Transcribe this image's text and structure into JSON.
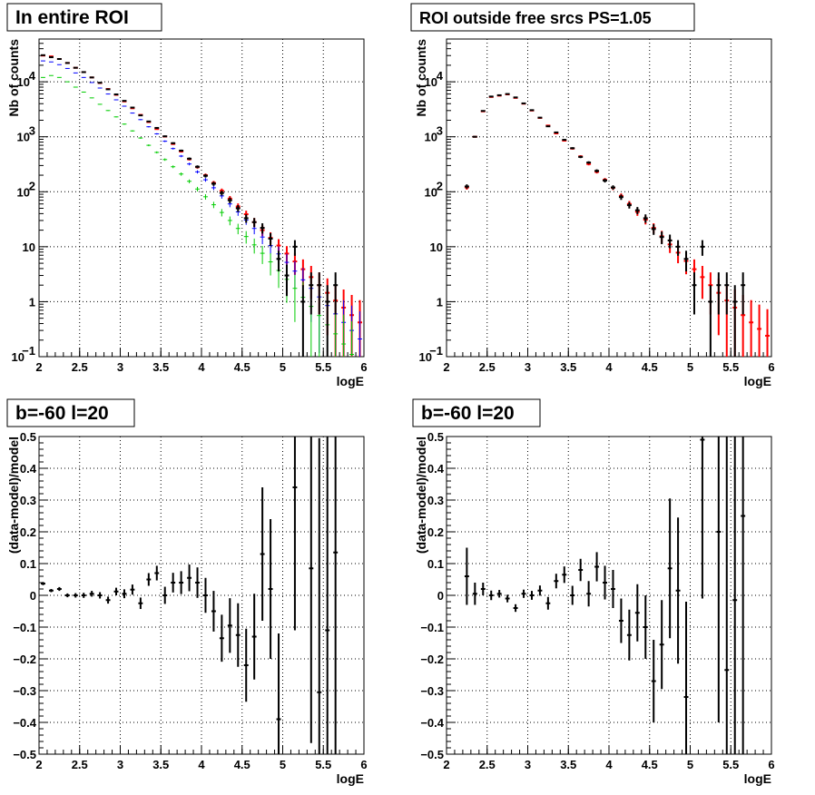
{
  "chart_data": [
    {
      "type": "scatter",
      "title": "In entire ROI",
      "xlabel": "logE",
      "ylabel": "Nb of counts",
      "xlim": [
        2,
        6
      ],
      "ylim": [
        0.1,
        60000
      ],
      "yscale": "log",
      "grid": true,
      "x_ticks": [
        "2",
        "2.5",
        "3",
        "3.5",
        "4",
        "4.5",
        "5",
        "5.5",
        "6"
      ],
      "y_ticks": [
        {
          "value": 0.1,
          "label": "10",
          "sup": "−1"
        },
        {
          "value": 1,
          "label": "1",
          "sup": ""
        },
        {
          "value": 10,
          "label": "10",
          "sup": ""
        },
        {
          "value": 100,
          "label": "10",
          "sup": "2"
        },
        {
          "value": 1000,
          "label": "10",
          "sup": "3"
        },
        {
          "value": 10000,
          "label": "10",
          "sup": "4"
        }
      ],
      "x_bin_half_width": 0.05,
      "series": [
        {
          "color": "#ff0000",
          "x": [
            2.05,
            2.15,
            2.25,
            2.35,
            2.45,
            2.55,
            2.65,
            2.75,
            2.85,
            2.95,
            3.05,
            3.15,
            3.25,
            3.35,
            3.45,
            3.55,
            3.65,
            3.75,
            3.85,
            3.95,
            4.05,
            4.15,
            4.25,
            4.35,
            4.45,
            4.55,
            4.65,
            4.75,
            4.85,
            4.95,
            5.05,
            5.15,
            5.25,
            5.35,
            5.45,
            5.55,
            5.65,
            5.75,
            5.85,
            5.95
          ],
          "y": [
            30000,
            29000,
            26000,
            22000,
            18000,
            15000,
            12000,
            9500,
            7400,
            5800,
            4400,
            3300,
            2500,
            1850,
            1380,
            1010,
            740,
            540,
            390,
            280,
            200,
            145,
            104,
            75,
            54,
            39,
            28,
            20,
            14.5,
            10.5,
            7.5,
            5.4,
            3.9,
            2.8,
            2.0,
            1.45,
            1.05,
            0.78,
            0.57,
            0.42
          ]
        },
        {
          "color": "#0000ff",
          "x": [
            2.05,
            2.15,
            2.25,
            2.35,
            2.45,
            2.55,
            2.65,
            2.75,
            2.85,
            2.95,
            3.05,
            3.15,
            3.25,
            3.35,
            3.45,
            3.55,
            3.65,
            3.75,
            3.85,
            3.95,
            4.05,
            4.15,
            4.25,
            4.35,
            4.45,
            4.55,
            4.65,
            4.75,
            4.85,
            4.95,
            5.05,
            5.15,
            5.25,
            5.35,
            5.45,
            5.55,
            5.65,
            5.75,
            5.85,
            5.95
          ],
          "y": [
            24000,
            23000,
            20500,
            17500,
            14500,
            12000,
            9700,
            7700,
            6000,
            4700,
            3600,
            2700,
            2050,
            1520,
            1130,
            830,
            610,
            445,
            320,
            230,
            165,
            118,
            84,
            60,
            43,
            30.5,
            21.5,
            15,
            10.5,
            7.4,
            5.2,
            3.6,
            2.5,
            1.75,
            1.22,
            0.85,
            0.6,
            0.42,
            0.3,
            0.21
          ]
        },
        {
          "color": "#00cc00",
          "x": [
            2.05,
            2.15,
            2.25,
            2.35,
            2.45,
            2.55,
            2.65,
            2.75,
            2.85,
            2.95,
            3.05,
            3.15,
            3.25,
            3.35,
            3.45,
            3.55,
            3.65,
            3.75,
            3.85,
            3.95,
            4.05,
            4.15,
            4.25,
            4.35,
            4.45,
            4.55,
            4.65,
            4.75,
            4.85,
            4.95,
            5.05,
            5.15,
            5.25,
            5.35,
            5.45,
            5.55,
            5.65,
            5.75,
            5.85,
            5.95
          ],
          "y": [
            12000,
            13000,
            12000,
            10000,
            8000,
            6500,
            5100,
            3900,
            3000,
            2300,
            1700,
            1280,
            950,
            700,
            520,
            385,
            285,
            210,
            155,
            112,
            81,
            58,
            42,
            30,
            21.5,
            15.3,
            10.8,
            7.6,
            5.3,
            3.7,
            2.55,
            1.75,
            1.2,
            0.82,
            0.56,
            0.38,
            0.26,
            0.17,
            0.11,
            0.075
          ]
        },
        {
          "color": "#000000",
          "x": [
            2.05,
            2.15,
            2.25,
            2.35,
            2.45,
            2.55,
            2.65,
            2.75,
            2.85,
            2.95,
            3.05,
            3.15,
            3.25,
            3.35,
            3.45,
            3.55,
            3.65,
            3.75,
            3.85,
            3.95,
            4.05,
            4.15,
            4.25,
            4.35,
            4.45,
            4.55,
            4.65,
            4.75,
            4.85,
            4.95,
            5.05,
            5.15,
            5.25,
            5.35,
            5.45,
            5.55,
            5.65
          ],
          "y": [
            30500,
            28000,
            26000,
            22000,
            18000,
            15000,
            12000,
            9600,
            7300,
            5900,
            4500,
            3400,
            2450,
            1900,
            1450,
            1020,
            765,
            560,
            400,
            285,
            195,
            140,
            95,
            70,
            50,
            33,
            28,
            22,
            14,
            6,
            3,
            10,
            1,
            2,
            2,
            1,
            2
          ]
        }
      ]
    },
    {
      "type": "scatter",
      "title": "ROI outside free srcs PS=1.05",
      "xlabel": "logE",
      "ylabel": "Nb of counts",
      "xlim": [
        2,
        6
      ],
      "ylim": [
        0.1,
        60000
      ],
      "yscale": "log",
      "grid": true,
      "x_ticks": [
        "2",
        "2.5",
        "3",
        "3.5",
        "4",
        "4.5",
        "5",
        "5.5",
        "6"
      ],
      "y_ticks": [
        {
          "value": 0.1,
          "label": "10",
          "sup": "−1"
        },
        {
          "value": 1,
          "label": "1",
          "sup": ""
        },
        {
          "value": 10,
          "label": "10",
          "sup": ""
        },
        {
          "value": 100,
          "label": "10",
          "sup": "2"
        },
        {
          "value": 1000,
          "label": "10",
          "sup": "3"
        },
        {
          "value": 10000,
          "label": "10",
          "sup": "4"
        }
      ],
      "x_bin_half_width": 0.05,
      "series": [
        {
          "color": "#ff0000",
          "x": [
            2.25,
            2.35,
            2.45,
            2.55,
            2.65,
            2.75,
            2.85,
            2.95,
            3.05,
            3.15,
            3.25,
            3.35,
            3.45,
            3.55,
            3.65,
            3.75,
            3.85,
            3.95,
            4.05,
            4.15,
            4.25,
            4.35,
            4.45,
            4.55,
            4.65,
            4.75,
            4.85,
            4.95,
            5.05,
            5.15,
            5.25,
            5.35,
            5.45,
            5.55,
            5.65,
            5.75,
            5.85,
            5.95
          ],
          "y": [
            120,
            1000,
            2900,
            5300,
            5600,
            5900,
            5100,
            4000,
            3000,
            2200,
            1600,
            1150,
            850,
            610,
            440,
            320,
            230,
            165,
            118,
            84,
            60,
            43,
            31,
            22,
            15.5,
            11,
            7.8,
            5.5,
            3.9,
            2.8,
            2.0,
            1.45,
            1.05,
            0.78,
            0.57,
            0.42,
            0.32,
            0.24
          ]
        },
        {
          "color": "#000000",
          "x": [
            2.25,
            2.35,
            2.45,
            2.55,
            2.65,
            2.75,
            2.85,
            2.95,
            3.05,
            3.15,
            3.25,
            3.35,
            3.45,
            3.55,
            3.65,
            3.75,
            3.85,
            3.95,
            4.05,
            4.15,
            4.25,
            4.35,
            4.45,
            4.55,
            4.65,
            4.75,
            4.85,
            4.95,
            5.05,
            5.15,
            5.25,
            5.35,
            5.45,
            5.55,
            5.65
          ],
          "y": [
            125,
            1000,
            2950,
            5400,
            5700,
            6000,
            5200,
            4050,
            3050,
            2230,
            1550,
            1200,
            880,
            620,
            430,
            340,
            240,
            160,
            120,
            80,
            57,
            46,
            33,
            21,
            15,
            13,
            10,
            6,
            2,
            10,
            1,
            2,
            2,
            1,
            2
          ]
        }
      ]
    },
    {
      "type": "scatter",
      "title": "b=-60 l=20",
      "xlabel": "logE",
      "ylabel": "(data-model)/model",
      "xlim": [
        2,
        6
      ],
      "ylim": [
        -0.5,
        0.5
      ],
      "yscale": "linear",
      "grid": true,
      "x_ticks": [
        "2",
        "2.5",
        "3",
        "3.5",
        "4",
        "4.5",
        "5",
        "5.5",
        "6"
      ],
      "y_ticks": [
        "−0.5",
        "−0.4",
        "−0.3",
        "−0.2",
        "−0.1",
        "0",
        "0.1",
        "0.2",
        "0.3",
        "0.4",
        "0.5"
      ],
      "x_bin_half_width": 0.05,
      "series": [
        {
          "color": "#000000",
          "x": [
            2.05,
            2.15,
            2.25,
            2.35,
            2.45,
            2.55,
            2.65,
            2.75,
            2.85,
            2.95,
            3.05,
            3.15,
            3.25,
            3.35,
            3.45,
            3.55,
            3.65,
            3.75,
            3.85,
            3.95,
            4.05,
            4.15,
            4.25,
            4.35,
            4.45,
            4.55,
            4.65,
            4.75,
            4.85,
            4.95,
            5.15,
            5.35,
            5.45,
            5.55,
            5.65
          ],
          "y": [
            0.037,
            0.015,
            0.02,
            0.0,
            0.0,
            0.0,
            0.005,
            0.0,
            -0.015,
            0.012,
            0.005,
            0.018,
            -0.025,
            0.05,
            0.07,
            0.0,
            0.04,
            0.04,
            0.055,
            0.04,
            0.0,
            -0.05,
            -0.135,
            -0.095,
            -0.125,
            -0.22,
            -0.13,
            0.13,
            0.02,
            -0.39,
            0.34,
            0.085,
            -0.305,
            -0.11,
            0.135
          ],
          "err": [
            0.005,
            0.005,
            0.006,
            0.006,
            0.007,
            0.008,
            0.009,
            0.01,
            0.011,
            0.012,
            0.014,
            0.016,
            0.018,
            0.02,
            0.023,
            0.027,
            0.031,
            0.036,
            0.042,
            0.048,
            0.055,
            0.064,
            0.074,
            0.086,
            0.1,
            0.115,
            0.135,
            0.21,
            0.22,
            0.27,
            0.45,
            0.55,
            0.8,
            0.8,
            0.8
          ]
        }
      ]
    },
    {
      "type": "scatter",
      "title": "b=-60 l=20",
      "xlabel": "logE",
      "ylabel": "(data-model)/model",
      "xlim": [
        2,
        6
      ],
      "ylim": [
        -0.5,
        0.5
      ],
      "yscale": "linear",
      "grid": true,
      "x_ticks": [
        "2",
        "2.5",
        "3",
        "3.5",
        "4",
        "4.5",
        "5",
        "5.5",
        "6"
      ],
      "y_ticks": [
        "−0.5",
        "−0.4",
        "−0.3",
        "−0.2",
        "−0.1",
        "0",
        "0.1",
        "0.2",
        "0.3",
        "0.4",
        "0.5"
      ],
      "x_bin_half_width": 0.05,
      "series": [
        {
          "color": "#000000",
          "x": [
            2.25,
            2.35,
            2.45,
            2.55,
            2.65,
            2.75,
            2.85,
            2.95,
            3.05,
            3.15,
            3.25,
            3.35,
            3.45,
            3.55,
            3.65,
            3.75,
            3.85,
            3.95,
            4.05,
            4.15,
            4.25,
            4.35,
            4.45,
            4.55,
            4.65,
            4.75,
            4.85,
            4.95,
            5.15,
            5.35,
            5.45,
            5.55,
            5.65
          ],
          "y": [
            0.06,
            0.005,
            0.02,
            0.0,
            0.005,
            -0.01,
            -0.04,
            0.005,
            0.0,
            0.015,
            -0.025,
            0.045,
            0.065,
            0.0,
            0.08,
            0.005,
            0.09,
            0.04,
            0.02,
            -0.08,
            -0.125,
            -0.055,
            -0.1,
            -0.27,
            -0.155,
            0.085,
            0.015,
            -0.32,
            0.49,
            0.2,
            -0.235,
            -0.015,
            0.25
          ],
          "err": [
            0.09,
            0.035,
            0.02,
            0.015,
            0.012,
            0.012,
            0.012,
            0.013,
            0.014,
            0.016,
            0.02,
            0.023,
            0.026,
            0.03,
            0.035,
            0.04,
            0.046,
            0.053,
            0.06,
            0.07,
            0.08,
            0.09,
            0.1,
            0.13,
            0.14,
            0.22,
            0.23,
            0.3,
            0.5,
            0.6,
            0.8,
            0.8,
            0.8
          ]
        }
      ]
    }
  ]
}
